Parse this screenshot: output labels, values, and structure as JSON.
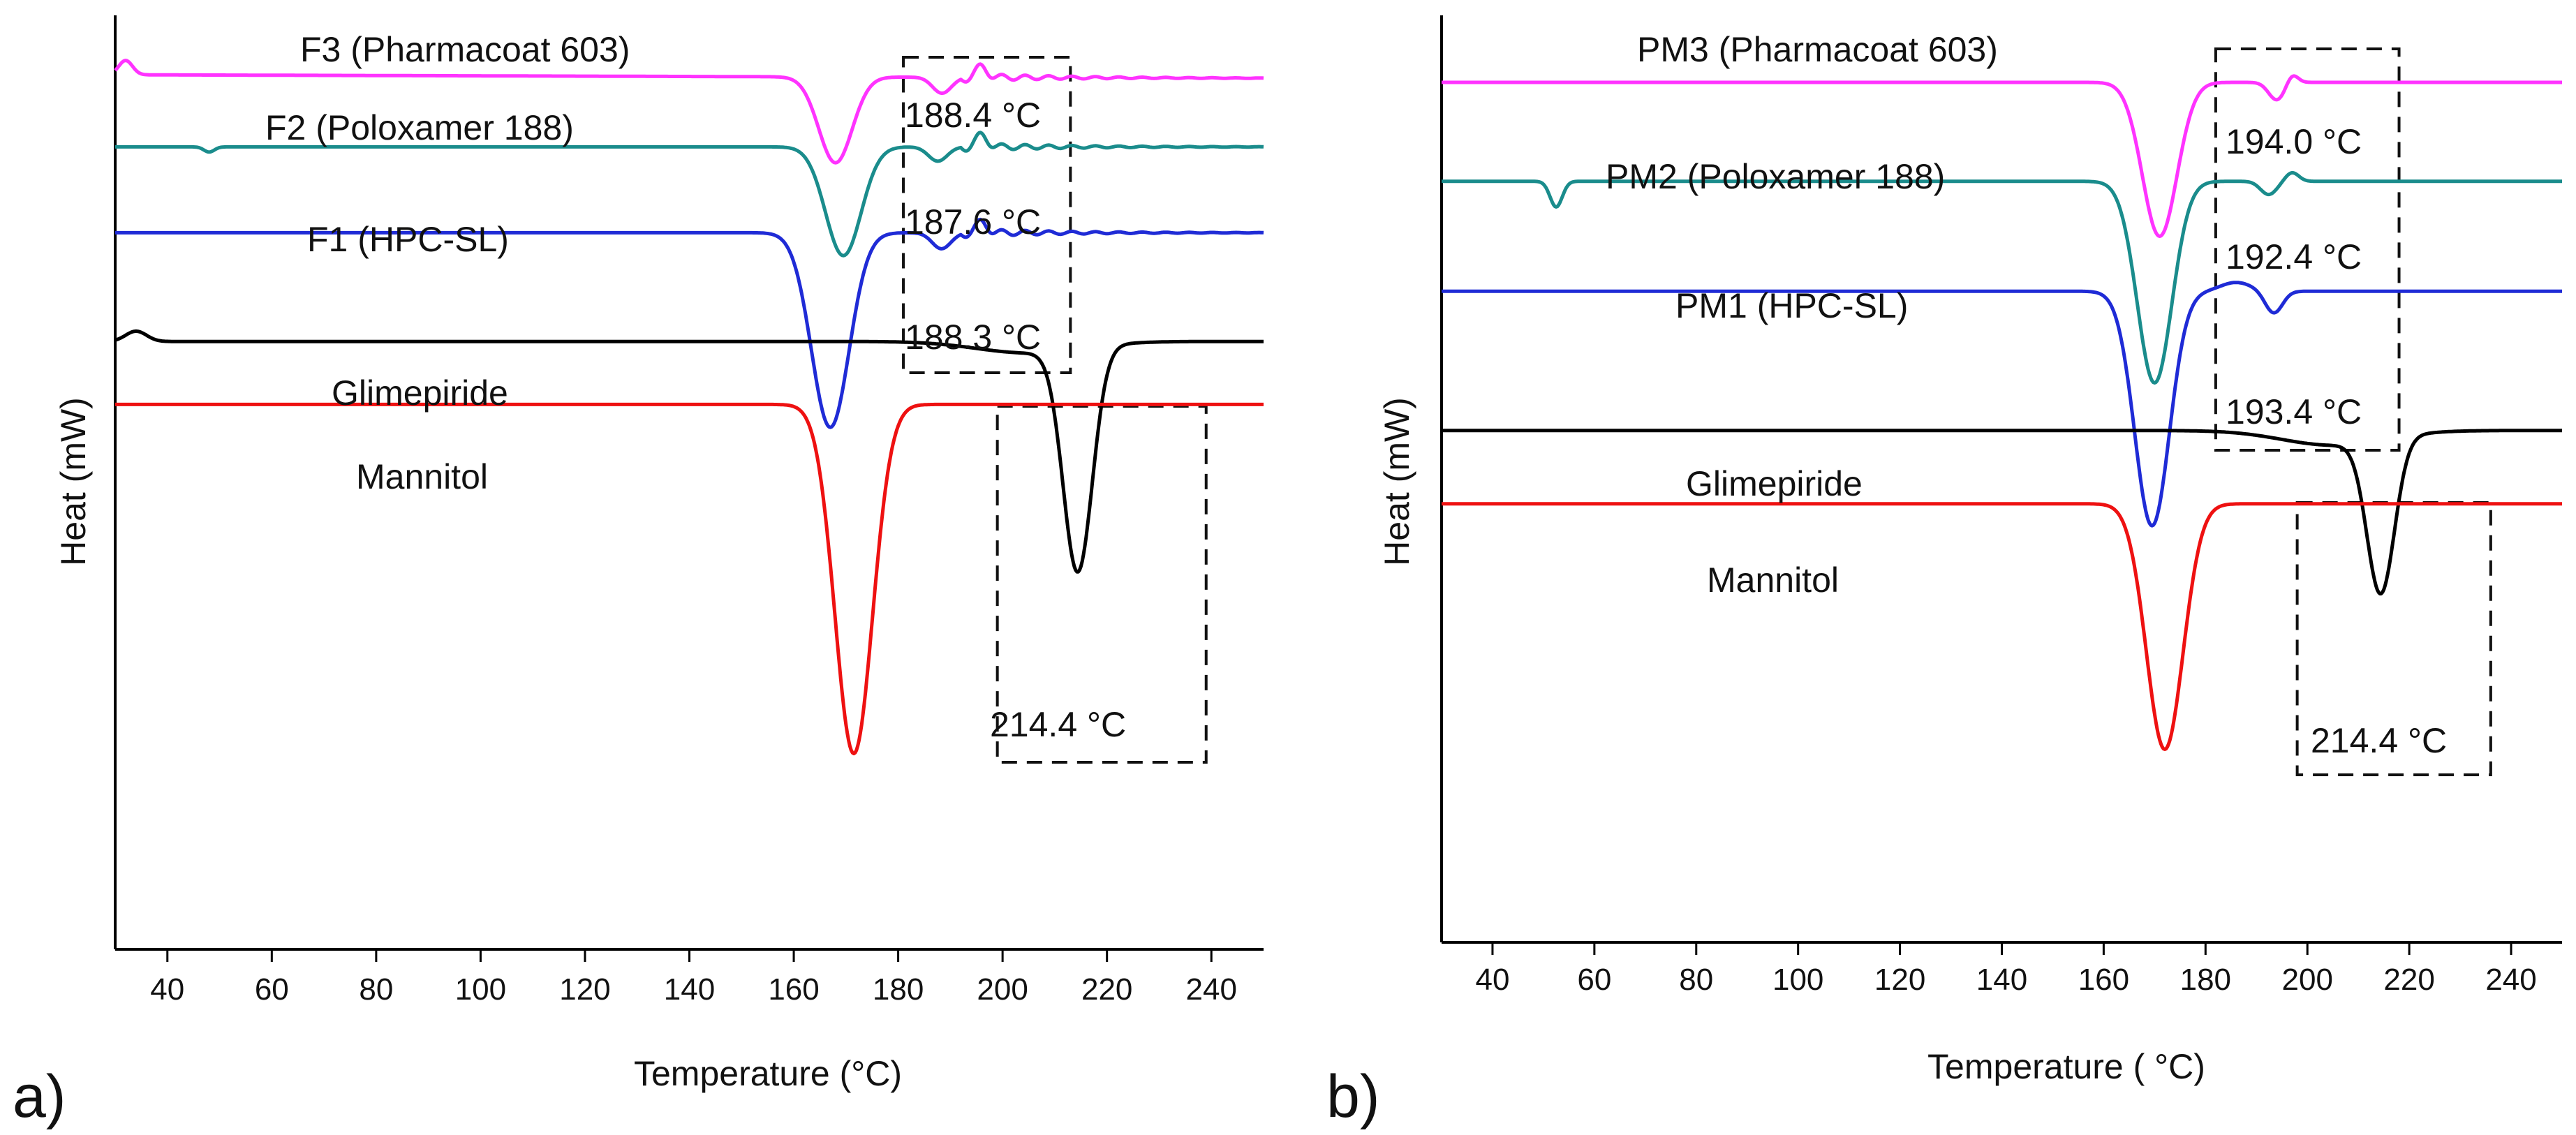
{
  "chart_data": [
    {
      "type": "line",
      "panel_label": "a)",
      "xlabel": "Temperature (°C)",
      "ylabel": "Heat (mW)",
      "xlim": [
        30,
        250
      ],
      "xticks": [
        "40",
        "60",
        "80",
        "100",
        "120",
        "140",
        "160",
        "180",
        "200",
        "220",
        "240"
      ],
      "series": [
        {
          "name": "F3 (Pharmacoat 603)",
          "color": "#ff33ff",
          "offset": 0,
          "baseline": -0.6,
          "features": [
            {
              "x": 168,
              "depth": 15,
              "width": 3.2
            },
            {
              "x": 188.4,
              "depth": 2.8,
              "width": 1.8
            }
          ],
          "bumps": [
            {
              "x": 32,
              "h": 2.5,
              "w": 1.3
            },
            {
              "x": 196,
              "h": 1.8,
              "w": 1.1
            }
          ],
          "ripple": 0.8
        },
        {
          "name": "F2 (Poloxamer 188)",
          "color": "#1a8c8c",
          "offset": 12,
          "baseline": 0,
          "features": [
            {
              "x": 48,
              "depth": 0.9,
              "width": 1
            },
            {
              "x": 169.5,
              "depth": 19,
              "width": 3.4
            },
            {
              "x": 187.6,
              "depth": 2.5,
              "width": 1.8
            }
          ],
          "bumps": [
            {
              "x": 196,
              "h": 2,
              "w": 1.1
            }
          ],
          "ripple": 0.8
        },
        {
          "name": "F1 (HPC-SL)",
          "color": "#1f2bd6",
          "offset": 27,
          "baseline": 0,
          "features": [
            {
              "x": 167,
              "depth": 34,
              "width": 3.6
            },
            {
              "x": 188.3,
              "depth": 2.8,
              "width": 1.8
            }
          ],
          "bumps": [
            {
              "x": 196,
              "h": 1.8,
              "w": 1.1
            }
          ],
          "ripple": 0.8
        },
        {
          "name": "Glimepiride",
          "color": "#000000",
          "offset": 46,
          "baseline": 0,
          "features": [
            {
              "x": 214.4,
              "depth": 39,
              "width": 2.8
            },
            {
              "x": 205,
              "depth": 2,
              "width": 10
            }
          ],
          "bumps": [
            {
              "x": 34,
              "h": 1.8,
              "w": 2
            }
          ],
          "ripple": 0
        },
        {
          "name": "Mannitol",
          "color": "#ee1111",
          "offset": 57,
          "baseline": 0,
          "features": [
            {
              "x": 171.5,
              "depth": 61,
              "width": 3.6
            }
          ],
          "bumps": [],
          "ripple": 0
        }
      ],
      "annotations": [
        {
          "text": "188.4 °C",
          "x": 188.4,
          "series": "F3 (Pharmacoat 603)"
        },
        {
          "text": "187.6 °C",
          "x": 187.6,
          "series": "F2 (Poloxamer 188)"
        },
        {
          "text": "188.3 °C",
          "x": 188.3,
          "series": "F1 (HPC-SL)"
        },
        {
          "text": "214.4 °C",
          "x": 214.4,
          "series": "Glimepiride"
        }
      ],
      "highlight_boxes": [
        {
          "x_range": [
            181,
            213
          ]
        },
        {
          "x_range": [
            199,
            239
          ]
        }
      ]
    },
    {
      "type": "line",
      "panel_label": "b)",
      "xlabel": "Temperature ( °C)",
      "ylabel": "Heat (mW)",
      "xlim": [
        30,
        250
      ],
      "xticks": [
        "40",
        "60",
        "80",
        "100",
        "120",
        "140",
        "160",
        "180",
        "200",
        "220",
        "240"
      ],
      "series": [
        {
          "name": "PM3 (Pharmacoat 603)",
          "color": "#ff33ff",
          "offset": 0,
          "baseline": 0,
          "features": [
            {
              "x": 171,
              "depth": 21,
              "width": 3.4
            },
            {
              "x": 194,
              "depth": 2.4,
              "width": 1.6
            }
          ],
          "bumps": [
            {
              "x": 197,
              "h": 1.2,
              "w": 1.1
            }
          ],
          "ripple": 0
        },
        {
          "name": "PM2 (Poloxamer 188)",
          "color": "#1a8c8c",
          "offset": 13.5,
          "baseline": 0,
          "features": [
            {
              "x": 52.5,
              "depth": 3.5,
              "width": 1.2
            },
            {
              "x": 170,
              "depth": 27.5,
              "width": 3.4
            },
            {
              "x": 192.4,
              "depth": 1.8,
              "width": 1.6
            }
          ],
          "bumps": [
            {
              "x": 197,
              "h": 1.2,
              "w": 1.3
            }
          ],
          "ripple": 0
        },
        {
          "name": "PM1 (HPC-SL)",
          "color": "#1f2bd6",
          "offset": 28.5,
          "baseline": 0,
          "features": [
            {
              "x": 169.5,
              "depth": 32,
              "width": 3.4
            },
            {
              "x": 193.4,
              "depth": 3,
              "width": 1.7
            }
          ],
          "bumps": [
            {
              "x": 186,
              "h": 1.2,
              "w": 3
            }
          ],
          "ripple": 0
        },
        {
          "name": "Glimepiride",
          "color": "#000000",
          "offset": 47.5,
          "baseline": 0,
          "features": [
            {
              "x": 214.4,
              "depth": 21,
              "width": 2.7
            },
            {
              "x": 205,
              "depth": 2,
              "width": 10
            }
          ],
          "bumps": [],
          "ripple": 0
        },
        {
          "name": "Mannitol",
          "color": "#ee1111",
          "offset": 57.5,
          "baseline": 0,
          "features": [
            {
              "x": 172,
              "depth": 33.5,
              "width": 3.6
            }
          ],
          "bumps": [],
          "ripple": 0
        }
      ],
      "annotations": [
        {
          "text": "194.0 °C",
          "x": 194.0,
          "series": "PM3 (Pharmacoat 603)"
        },
        {
          "text": "192.4 °C",
          "x": 192.4,
          "series": "PM2 (Poloxamer 188)"
        },
        {
          "text": "193.4 °C",
          "x": 193.4,
          "series": "PM1 (HPC-SL)"
        },
        {
          "text": "214.4 °C",
          "x": 214.4,
          "series": "Glimepiride"
        }
      ],
      "highlight_boxes": [
        {
          "x_range": [
            182,
            218
          ]
        },
        {
          "x_range": [
            198,
            236
          ]
        }
      ]
    }
  ]
}
